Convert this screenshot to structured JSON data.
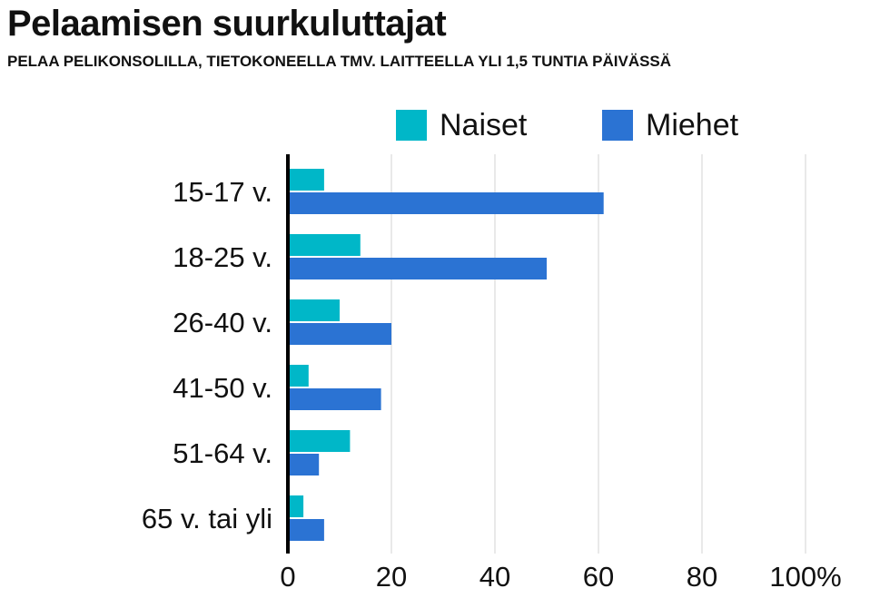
{
  "chart_data": {
    "type": "bar",
    "orientation": "horizontal",
    "title": "Pelaamisen suurkuluttajat",
    "subtitle": "PELAA PELIKONSOLILLA, TIETOKONEELLA TMV. LAITTEELLA YLI 1,5 TUNTIA PÄIVÄSSÄ",
    "categories": [
      "15-17 v.",
      "18-25 v.",
      "26-40 v.",
      "41-50 v.",
      "51-64 v.",
      "65 v. tai yli"
    ],
    "series": [
      {
        "name": "Naiset",
        "color": "#00b7c8",
        "values": [
          7,
          14,
          10,
          4,
          12,
          3
        ]
      },
      {
        "name": "Miehet",
        "color": "#2b73d3",
        "values": [
          61,
          50,
          20,
          18,
          6,
          7
        ]
      }
    ],
    "xlim": [
      0,
      100
    ],
    "x_ticks": [
      0,
      20,
      40,
      60,
      80,
      100
    ],
    "x_tick_labels": [
      "0",
      "20",
      "40",
      "60",
      "80",
      "100%"
    ],
    "grid": true,
    "legend_position": "top"
  }
}
